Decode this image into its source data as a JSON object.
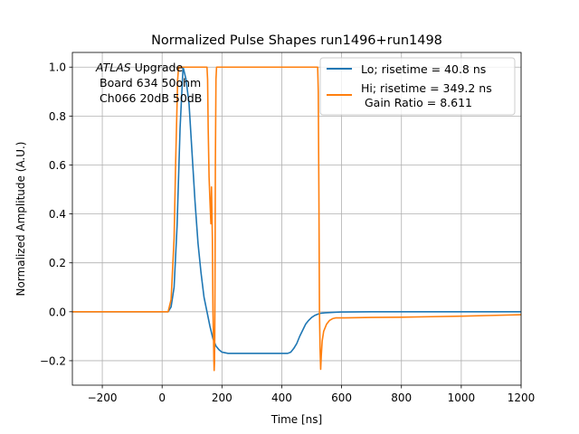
{
  "chart_data": {
    "type": "line",
    "title": "Normalized Pulse Shapes run1496+run1498",
    "xlabel": "Time [ns]",
    "ylabel": "Normalized Amplitude (A.U.)",
    "xlim": [
      -300,
      1200
    ],
    "ylim": [
      -0.3,
      1.06
    ],
    "grid": true,
    "x_ticks": [
      -200,
      0,
      200,
      400,
      600,
      800,
      1000,
      1200
    ],
    "x_tick_labels": [
      "−200",
      "0",
      "200",
      "400",
      "600",
      "800",
      "1000",
      "1200"
    ],
    "y_ticks": [
      -0.2,
      0.0,
      0.2,
      0.4,
      0.6,
      0.8,
      1.0
    ],
    "y_tick_labels": [
      "−0.2",
      "0.0",
      "0.2",
      "0.4",
      "0.6",
      "0.8",
      "1.0"
    ],
    "annotation": {
      "atlas": "ATLAS",
      "line1_rest": " Upgrade",
      "line2": "Board 634 50ohm",
      "line3": "Ch066 20dB 50dB"
    },
    "legend": {
      "placement": "top-right",
      "entries": [
        {
          "lines": [
            "Lo; risetime = 40.8 ns"
          ],
          "color": "#1f77b4"
        },
        {
          "lines": [
            "Hi; risetime = 349.2 ns",
            " Gain Ratio = 8.611"
          ],
          "color": "#ff7f0e"
        }
      ]
    },
    "series": [
      {
        "name": "Lo",
        "color": "#1f77b4",
        "x": [
          -300,
          20,
          30,
          40,
          50,
          60,
          70,
          80,
          90,
          100,
          110,
          120,
          130,
          140,
          150,
          160,
          170,
          180,
          190,
          200,
          220,
          300,
          400,
          420,
          430,
          440,
          450,
          460,
          470,
          480,
          490,
          500,
          510,
          520,
          530,
          545,
          560,
          580,
          600,
          700,
          800,
          1000,
          1200
        ],
        "y": [
          0,
          0,
          0.02,
          0.1,
          0.35,
          0.75,
          1.0,
          0.95,
          0.85,
          0.65,
          0.45,
          0.28,
          0.16,
          0.06,
          0.0,
          -0.06,
          -0.11,
          -0.14,
          -0.155,
          -0.165,
          -0.17,
          -0.17,
          -0.17,
          -0.17,
          -0.165,
          -0.15,
          -0.13,
          -0.1,
          -0.075,
          -0.05,
          -0.035,
          -0.023,
          -0.015,
          -0.01,
          -0.006,
          -0.004,
          -0.003,
          -0.002,
          -0.001,
          0,
          0,
          0,
          0
        ]
      },
      {
        "name": "Hi",
        "color": "#ff7f0e",
        "x": [
          -300,
          20,
          30,
          40,
          45,
          50,
          52,
          55,
          150,
          152,
          154,
          157,
          160,
          163,
          165,
          168,
          170,
          172,
          173,
          174,
          175,
          176,
          177,
          178,
          180,
          182,
          185,
          520,
          522,
          524,
          526,
          528,
          530,
          532,
          535,
          540,
          550,
          560,
          570,
          580,
          600,
          700,
          800,
          900,
          1000,
          1100,
          1200
        ],
        "y": [
          0,
          0,
          0.05,
          0.3,
          0.6,
          0.85,
          0.95,
          1.0,
          1.0,
          0.95,
          0.75,
          0.55,
          0.45,
          0.36,
          0.51,
          0.3,
          0.0,
          -0.12,
          -0.2,
          -0.24,
          -0.21,
          -0.1,
          0.2,
          0.6,
          0.95,
          1.0,
          1.0,
          1.0,
          0.9,
          0.5,
          0.0,
          -0.15,
          -0.235,
          -0.18,
          -0.12,
          -0.08,
          -0.05,
          -0.035,
          -0.028,
          -0.025,
          -0.025,
          -0.023,
          -0.022,
          -0.02,
          -0.018,
          -0.015,
          -0.012
        ]
      }
    ]
  }
}
